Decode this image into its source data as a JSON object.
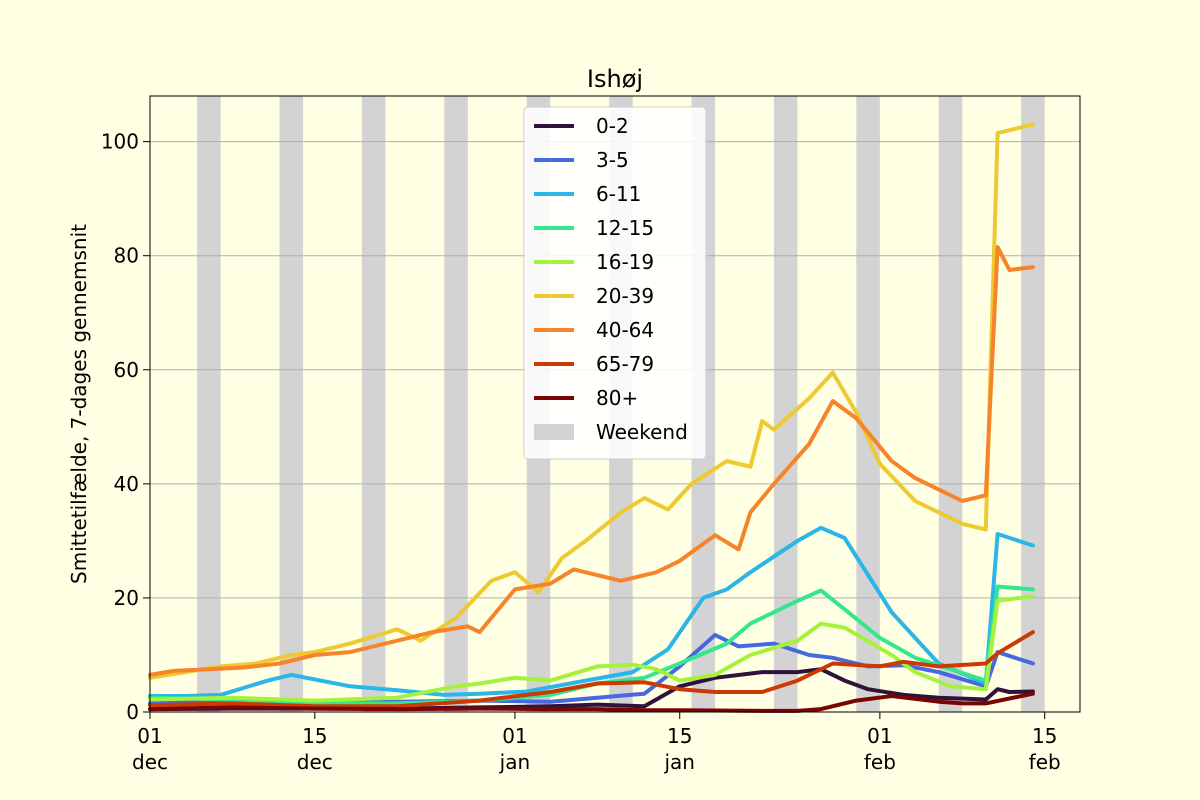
{
  "chart_data": {
    "type": "line",
    "title": "Ishøj",
    "xlabel": "",
    "ylabel": "Smittetilfælde, 7-dages gennemsnit",
    "x_start": "2020-12-01",
    "x_end": "2021-02-18",
    "ylim": [
      0,
      108
    ],
    "yticks": [
      0,
      20,
      40,
      60,
      80,
      100
    ],
    "xticks": [
      {
        "date": "2020-12-01",
        "label": [
          "01",
          "dec"
        ]
      },
      {
        "date": "2020-12-15",
        "label": [
          "15",
          "dec"
        ]
      },
      {
        "date": "2021-01-01",
        "label": [
          "01",
          "jan"
        ]
      },
      {
        "date": "2021-01-15",
        "label": [
          "15",
          "jan"
        ]
      },
      {
        "date": "2021-02-01",
        "label": [
          "01",
          "feb"
        ]
      },
      {
        "date": "2021-02-15",
        "label": [
          "15",
          "feb"
        ]
      }
    ],
    "grid": "y",
    "legend_position": "top-center",
    "weekend_label": "Weekend",
    "weekend_color": "#d3d3d3",
    "weekends": [
      "2020-12-05",
      "2020-12-12",
      "2020-12-19",
      "2020-12-26",
      "2021-01-02",
      "2021-01-09",
      "2021-01-16",
      "2021-01-23",
      "2021-01-30",
      "2021-02-06",
      "2021-02-13",
      "2021-02-20"
    ],
    "series": [
      {
        "name": "0-2",
        "color": "#30123b",
        "points": [
          [
            "2020-12-01",
            0.5
          ],
          [
            "2020-12-08",
            0.6
          ],
          [
            "2020-12-15",
            0.6
          ],
          [
            "2020-12-22",
            0.6
          ],
          [
            "2020-12-29",
            0.8
          ],
          [
            "2021-01-04",
            1.0
          ],
          [
            "2021-01-08",
            1.3
          ],
          [
            "2021-01-12",
            1.0
          ],
          [
            "2021-01-15",
            4.5
          ],
          [
            "2021-01-18",
            6.0
          ],
          [
            "2021-01-22",
            7.0
          ],
          [
            "2021-01-25",
            7.0
          ],
          [
            "2021-01-27",
            7.5
          ],
          [
            "2021-01-29",
            5.5
          ],
          [
            "2021-01-31",
            4.0
          ],
          [
            "2021-02-03",
            3.0
          ],
          [
            "2021-02-06",
            2.5
          ],
          [
            "2021-02-10",
            2.2
          ],
          [
            "2021-02-11",
            4.0
          ],
          [
            "2021-02-12",
            3.5
          ],
          [
            "2021-02-14",
            3.6
          ]
        ]
      },
      {
        "name": "3-5",
        "color": "#4669e0",
        "points": [
          [
            "2020-12-01",
            1.5
          ],
          [
            "2020-12-08",
            2.0
          ],
          [
            "2020-12-15",
            1.8
          ],
          [
            "2020-12-22",
            1.8
          ],
          [
            "2020-12-29",
            2.0
          ],
          [
            "2021-01-04",
            1.8
          ],
          [
            "2021-01-08",
            2.5
          ],
          [
            "2021-01-12",
            3.2
          ],
          [
            "2021-01-15",
            8.0
          ],
          [
            "2021-01-18",
            13.5
          ],
          [
            "2021-01-20",
            11.5
          ],
          [
            "2021-01-23",
            12.0
          ],
          [
            "2021-01-26",
            10.0
          ],
          [
            "2021-01-28",
            9.5
          ],
          [
            "2021-01-31",
            8.0
          ],
          [
            "2021-02-03",
            8.2
          ],
          [
            "2021-02-06",
            7.0
          ],
          [
            "2021-02-10",
            4.5
          ],
          [
            "2021-02-11",
            10.5
          ],
          [
            "2021-02-14",
            8.5
          ]
        ]
      },
      {
        "name": "6-11",
        "color": "#2ab6e6",
        "points": [
          [
            "2020-12-01",
            2.8
          ],
          [
            "2020-12-04",
            2.8
          ],
          [
            "2020-12-07",
            3.0
          ],
          [
            "2020-12-11",
            5.5
          ],
          [
            "2020-12-13",
            6.5
          ],
          [
            "2020-12-18",
            4.5
          ],
          [
            "2020-12-22",
            3.8
          ],
          [
            "2020-12-26",
            3.0
          ],
          [
            "2020-12-29",
            3.2
          ],
          [
            "2021-01-02",
            3.6
          ],
          [
            "2021-01-07",
            5.5
          ],
          [
            "2021-01-11",
            7.0
          ],
          [
            "2021-01-14",
            11.0
          ],
          [
            "2021-01-17",
            20.0
          ],
          [
            "2021-01-19",
            21.5
          ],
          [
            "2021-01-21",
            24.5
          ],
          [
            "2021-01-25",
            30.0
          ],
          [
            "2021-01-27",
            32.3
          ],
          [
            "2021-01-29",
            30.5
          ],
          [
            "2021-02-02",
            17.5
          ],
          [
            "2021-02-06",
            8.5
          ],
          [
            "2021-02-10",
            5.0
          ],
          [
            "2021-02-11",
            31.2
          ],
          [
            "2021-02-14",
            29.2
          ]
        ]
      },
      {
        "name": "12-15",
        "color": "#35e68f",
        "points": [
          [
            "2020-12-01",
            2.5
          ],
          [
            "2020-12-08",
            2.2
          ],
          [
            "2020-12-15",
            1.5
          ],
          [
            "2020-12-22",
            1.5
          ],
          [
            "2020-12-29",
            2.0
          ],
          [
            "2021-01-04",
            3.0
          ],
          [
            "2021-01-08",
            5.0
          ],
          [
            "2021-01-12",
            6.0
          ],
          [
            "2021-01-15",
            8.5
          ],
          [
            "2021-01-19",
            12.0
          ],
          [
            "2021-01-21",
            15.5
          ],
          [
            "2021-01-25",
            19.5
          ],
          [
            "2021-01-27",
            21.3
          ],
          [
            "2021-01-29",
            18.0
          ],
          [
            "2021-02-01",
            13.0
          ],
          [
            "2021-02-04",
            9.5
          ],
          [
            "2021-02-07",
            7.5
          ],
          [
            "2021-02-10",
            5.5
          ],
          [
            "2021-02-11",
            22.0
          ],
          [
            "2021-02-14",
            21.5
          ]
        ]
      },
      {
        "name": "16-19",
        "color": "#a5f23d",
        "points": [
          [
            "2020-12-01",
            2.2
          ],
          [
            "2020-12-08",
            2.5
          ],
          [
            "2020-12-15",
            2.0
          ],
          [
            "2020-12-22",
            2.5
          ],
          [
            "2020-12-27",
            4.5
          ],
          [
            "2020-12-29",
            5.0
          ],
          [
            "2021-01-01",
            6.0
          ],
          [
            "2021-01-04",
            5.5
          ],
          [
            "2021-01-08",
            8.0
          ],
          [
            "2021-01-11",
            8.3
          ],
          [
            "2021-01-13",
            7.5
          ],
          [
            "2021-01-15",
            5.5
          ],
          [
            "2021-01-18",
            6.5
          ],
          [
            "2021-01-21",
            10.0
          ],
          [
            "2021-01-25",
            12.5
          ],
          [
            "2021-01-27",
            15.5
          ],
          [
            "2021-01-29",
            14.8
          ],
          [
            "2021-02-02",
            10.0
          ],
          [
            "2021-02-04",
            7.0
          ],
          [
            "2021-02-07",
            4.5
          ],
          [
            "2021-02-10",
            4.0
          ],
          [
            "2021-02-11",
            19.5
          ],
          [
            "2021-02-14",
            20.3
          ]
        ]
      },
      {
        "name": "20-39",
        "color": "#edc932",
        "points": [
          [
            "2020-12-01",
            6.0
          ],
          [
            "2020-12-04",
            7.0
          ],
          [
            "2020-12-07",
            8.0
          ],
          [
            "2020-12-10",
            8.5
          ],
          [
            "2020-12-13",
            10.0
          ],
          [
            "2020-12-15",
            10.5
          ],
          [
            "2020-12-18",
            12.0
          ],
          [
            "2020-12-22",
            14.5
          ],
          [
            "2020-12-24",
            12.5
          ],
          [
            "2020-12-27",
            16.5
          ],
          [
            "2020-12-30",
            23.0
          ],
          [
            "2021-01-01",
            24.5
          ],
          [
            "2021-01-03",
            21.0
          ],
          [
            "2021-01-05",
            27.0
          ],
          [
            "2021-01-07",
            30.0
          ],
          [
            "2021-01-10",
            35.0
          ],
          [
            "2021-01-12",
            37.5
          ],
          [
            "2021-01-14",
            35.5
          ],
          [
            "2021-01-16",
            40.0
          ],
          [
            "2021-01-19",
            44.0
          ],
          [
            "2021-01-21",
            43.0
          ],
          [
            "2021-01-22",
            51.0
          ],
          [
            "2021-01-23",
            49.5
          ],
          [
            "2021-01-26",
            55.0
          ],
          [
            "2021-01-28",
            59.5
          ],
          [
            "2021-01-30",
            52.5
          ],
          [
            "2021-02-01",
            43.5
          ],
          [
            "2021-02-04",
            37.0
          ],
          [
            "2021-02-08",
            33.0
          ],
          [
            "2021-02-10",
            32.0
          ],
          [
            "2021-02-11",
            101.5
          ],
          [
            "2021-02-14",
            103.0
          ]
        ]
      },
      {
        "name": "40-64",
        "color": "#f6842b",
        "points": [
          [
            "2020-12-01",
            6.5
          ],
          [
            "2020-12-03",
            7.2
          ],
          [
            "2020-12-06",
            7.5
          ],
          [
            "2020-12-09",
            7.8
          ],
          [
            "2020-12-12",
            8.5
          ],
          [
            "2020-12-15",
            10.0
          ],
          [
            "2020-12-18",
            10.5
          ],
          [
            "2020-12-22",
            12.5
          ],
          [
            "2020-12-25",
            14.0
          ],
          [
            "2020-12-28",
            15.0
          ],
          [
            "2020-12-29",
            14.0
          ],
          [
            "2021-01-01",
            21.5
          ],
          [
            "2021-01-04",
            22.5
          ],
          [
            "2021-01-06",
            25.0
          ],
          [
            "2021-01-10",
            23.0
          ],
          [
            "2021-01-13",
            24.5
          ],
          [
            "2021-01-15",
            26.5
          ],
          [
            "2021-01-18",
            31.0
          ],
          [
            "2021-01-20",
            28.5
          ],
          [
            "2021-01-21",
            35.0
          ],
          [
            "2021-01-23",
            40.0
          ],
          [
            "2021-01-26",
            47.0
          ],
          [
            "2021-01-28",
            54.5
          ],
          [
            "2021-01-30",
            51.5
          ],
          [
            "2021-02-02",
            44.0
          ],
          [
            "2021-02-04",
            41.0
          ],
          [
            "2021-02-08",
            37.0
          ],
          [
            "2021-02-10",
            38.0
          ],
          [
            "2021-02-11",
            81.5
          ],
          [
            "2021-02-12",
            77.5
          ],
          [
            "2021-02-14",
            78.0
          ]
        ]
      },
      {
        "name": "65-79",
        "color": "#cb3a05",
        "points": [
          [
            "2020-12-01",
            1.2
          ],
          [
            "2020-12-08",
            1.5
          ],
          [
            "2020-12-15",
            1.0
          ],
          [
            "2020-12-22",
            1.0
          ],
          [
            "2020-12-29",
            2.0
          ],
          [
            "2021-01-04",
            3.5
          ],
          [
            "2021-01-08",
            5.0
          ],
          [
            "2021-01-12",
            5.2
          ],
          [
            "2021-01-15",
            4.0
          ],
          [
            "2021-01-18",
            3.5
          ],
          [
            "2021-01-22",
            3.5
          ],
          [
            "2021-01-25",
            5.5
          ],
          [
            "2021-01-28",
            8.5
          ],
          [
            "2021-02-01",
            8.0
          ],
          [
            "2021-02-03",
            8.8
          ],
          [
            "2021-02-06",
            8.0
          ],
          [
            "2021-02-10",
            8.5
          ],
          [
            "2021-02-11",
            10.3
          ],
          [
            "2021-02-14",
            14.0
          ]
        ]
      },
      {
        "name": "80+",
        "color": "#7a0403",
        "points": [
          [
            "2020-12-01",
            0.5
          ],
          [
            "2020-12-08",
            0.8
          ],
          [
            "2020-12-15",
            0.6
          ],
          [
            "2020-12-22",
            0.5
          ],
          [
            "2020-12-29",
            0.6
          ],
          [
            "2021-01-04",
            0.5
          ],
          [
            "2021-01-08",
            0.5
          ],
          [
            "2021-01-12",
            0.3
          ],
          [
            "2021-01-15",
            0.3
          ],
          [
            "2021-01-22",
            0.2
          ],
          [
            "2021-01-25",
            0.2
          ],
          [
            "2021-01-27",
            0.5
          ],
          [
            "2021-01-30",
            2.0
          ],
          [
            "2021-02-02",
            2.8
          ],
          [
            "2021-02-06",
            1.8
          ],
          [
            "2021-02-08",
            1.5
          ],
          [
            "2021-02-10",
            1.5
          ],
          [
            "2021-02-14",
            3.2
          ]
        ]
      }
    ]
  }
}
